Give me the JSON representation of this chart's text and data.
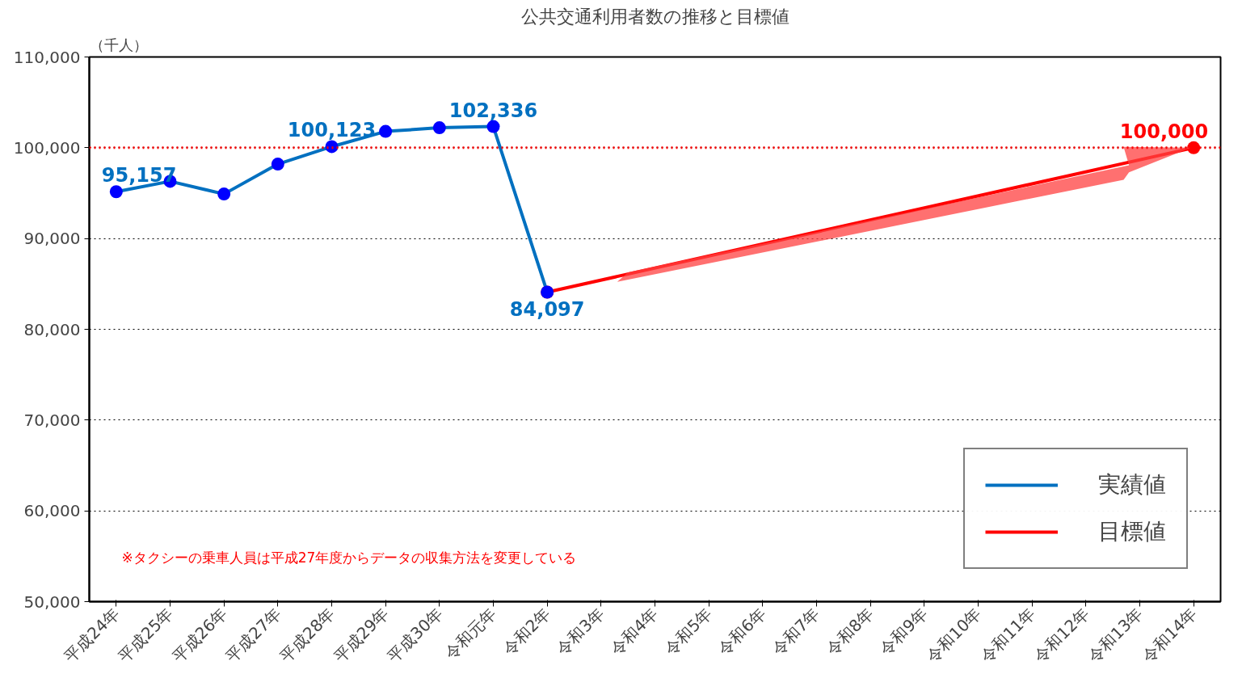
{
  "chart_data": {
    "type": "line",
    "title": "公共交通利用者数の推移と目標値",
    "ylabel": "（千人）",
    "categories": [
      "平成24年",
      "平成25年",
      "平成26年",
      "平成27年",
      "平成28年",
      "平成29年",
      "平成30年",
      "令和元年",
      "令和2年",
      "令和3年",
      "令和4年",
      "令和5年",
      "令和6年",
      "令和7年",
      "令和8年",
      "令和9年",
      "令和10年",
      "令和11年",
      "令和12年",
      "令和13年",
      "令和14年"
    ],
    "series": [
      {
        "name": "目標値",
        "color": "#ff0000",
        "values": [
          null,
          null,
          null,
          null,
          null,
          null,
          null,
          null,
          84097,
          null,
          null,
          null,
          null,
          null,
          null,
          null,
          null,
          null,
          null,
          null,
          100000
        ],
        "value_labels": [
          null,
          null,
          null,
          null,
          null,
          null,
          null,
          null,
          null,
          null,
          null,
          null,
          null,
          null,
          null,
          null,
          null,
          null,
          null,
          null,
          "100,000"
        ]
      },
      {
        "name": "実績値",
        "color": "#0070c0",
        "values": [
          95157,
          96300,
          94900,
          98200,
          100123,
          101800,
          102200,
          102336,
          84097,
          null,
          null,
          null,
          null,
          null,
          null,
          null,
          null,
          null,
          null,
          null,
          null
        ],
        "value_labels": [
          "95,157",
          null,
          null,
          null,
          "100,123",
          null,
          null,
          "102,336",
          "84,097",
          null,
          null,
          null,
          null,
          null,
          null,
          null,
          null,
          null,
          null,
          null,
          null
        ]
      }
    ],
    "ylim": [
      50000,
      110000
    ],
    "yticks": [
      {
        "value": 50000,
        "label": "50,000"
      },
      {
        "value": 60000,
        "label": "60,000"
      },
      {
        "value": 70000,
        "label": "70,000"
      },
      {
        "value": 80000,
        "label": "80,000"
      },
      {
        "value": 90000,
        "label": "90,000"
      },
      {
        "value": 100000,
        "label": "100,000"
      },
      {
        "value": 110000,
        "label": "110,000"
      }
    ],
    "ref_lines": [
      {
        "axis": "y",
        "value": 100000,
        "label": null,
        "color": "#ff0000",
        "line_style": "dotted"
      }
    ],
    "annotations": [
      "※タクシーの乗車人員は平成27年度からデータの収集方法を変更している"
    ],
    "grid": "y",
    "legend": "bottom right",
    "marker": "circle",
    "line_style": "solid"
  }
}
